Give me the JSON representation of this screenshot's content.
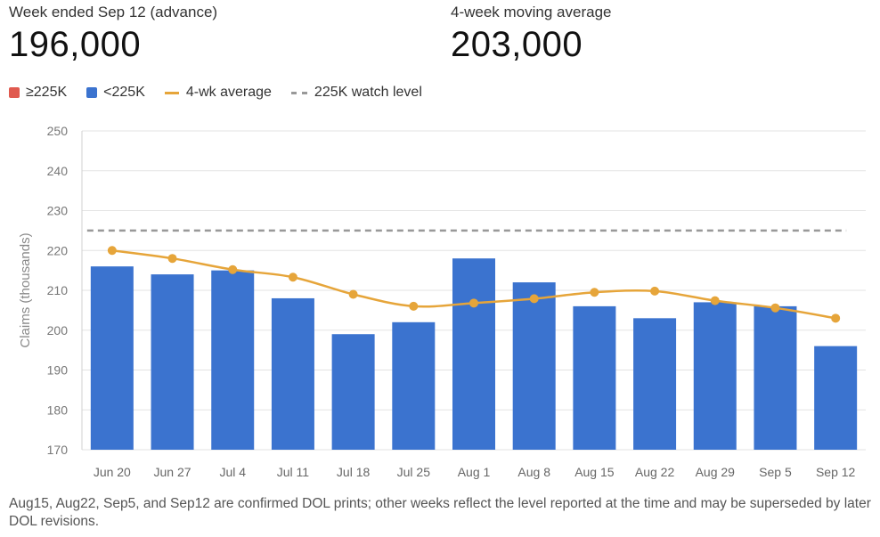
{
  "kpis": [
    {
      "label": "Week ended Sep 12 (advance)",
      "value": "196,000"
    },
    {
      "label": "4-week moving average",
      "value": "203,000"
    }
  ],
  "legend": [
    {
      "label": "≥225K",
      "kind": "swatch",
      "color": "#e05a4f"
    },
    {
      "label": "<225K",
      "kind": "swatch",
      "color": "#3b73cf"
    },
    {
      "label": "4-wk average",
      "kind": "line",
      "color": "#e6a53a"
    },
    {
      "label": "225K watch level",
      "kind": "dash",
      "color": "#999999"
    }
  ],
  "footnote": "Aug15, Aug22, Sep5, and Sep12 are confirmed DOL prints; other weeks reflect the level reported at the time and may be superseded by later DOL revisions.",
  "chart_data": {
    "type": "bar",
    "categories": [
      "Jun 20",
      "Jun 27",
      "Jul 4",
      "Jul 11",
      "Jul 18",
      "Jul 25",
      "Aug 1",
      "Aug 8",
      "Aug 15",
      "Aug 22",
      "Aug 29",
      "Sep 5",
      "Sep 12"
    ],
    "series": [
      {
        "name": "<225K",
        "type": "bar",
        "values": [
          216,
          214,
          215,
          208,
          199,
          202,
          218,
          212,
          206,
          203,
          207,
          206,
          196
        ],
        "color": "#3b73cf"
      },
      {
        "name": "4-wk average",
        "type": "line",
        "values": [
          220,
          218,
          215.2,
          213.3,
          209,
          206,
          206.8,
          207.9,
          209.5,
          209.8,
          207.4,
          205.6,
          203
        ],
        "color": "#e6a53a"
      }
    ],
    "threshold": {
      "label": "225K watch level",
      "value": 225,
      "color": "#999999"
    },
    "high_color": "#e05a4f",
    "ylabel": "Claims (thousands)",
    "ylim": [
      170,
      250
    ],
    "yticks": [
      170,
      180,
      190,
      200,
      210,
      220,
      230,
      240,
      250
    ],
    "grid": true,
    "legend_position": "top-left"
  }
}
